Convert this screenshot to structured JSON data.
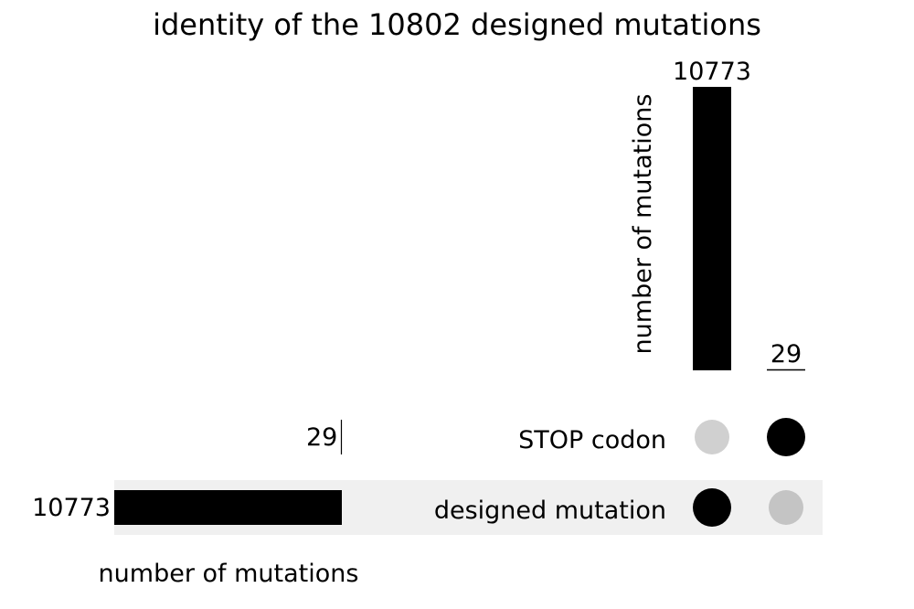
{
  "chart_data": {
    "type": "upset",
    "title": "identity of the 10802 designed mutations",
    "sets": [
      "STOP codon",
      "designed mutation"
    ],
    "set_sizes": {
      "label": "number of mutations",
      "values": [
        29,
        10773
      ]
    },
    "intersections": {
      "label": "number of mutations",
      "items": [
        {
          "value": 10773,
          "value_label": "10773",
          "membership": [
            false,
            true
          ]
        },
        {
          "value": 29,
          "value_label": "29",
          "membership": [
            true,
            false
          ]
        }
      ]
    },
    "dot_colors": {
      "active": "#000000",
      "inactive_light": "#d0d0d0",
      "inactive": "#c4c4c4"
    },
    "shade_color": "#f0f0f0",
    "bar_color": "#000000"
  }
}
